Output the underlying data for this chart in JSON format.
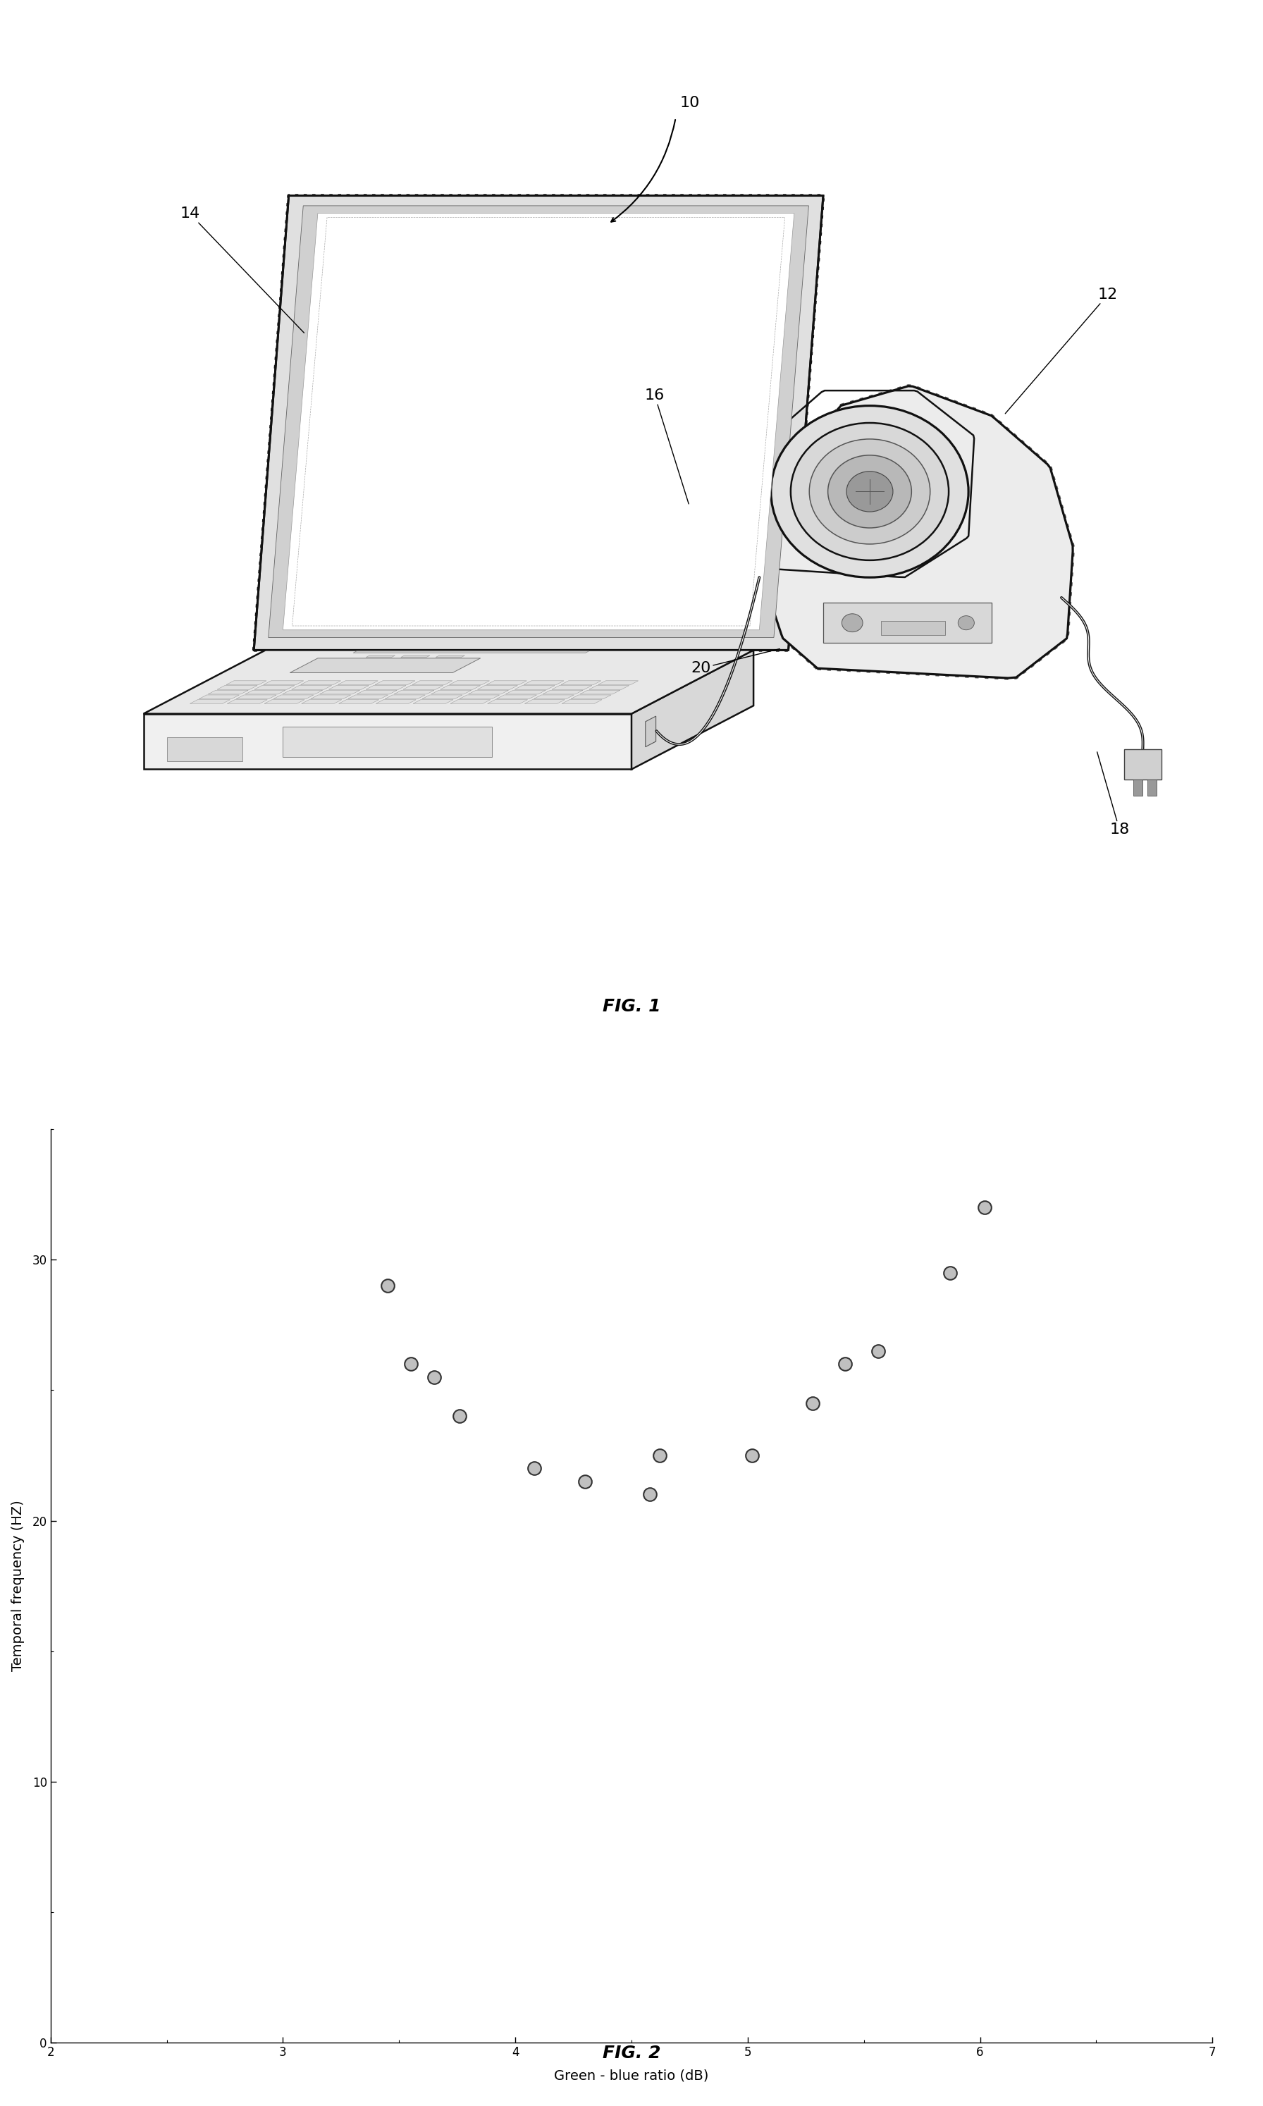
{
  "fig1_caption": "FIG. 1",
  "fig2_caption": "FIG. 2",
  "scatter_x": [
    3.45,
    3.55,
    3.65,
    3.76,
    4.08,
    4.3,
    4.58,
    4.62,
    5.02,
    5.28,
    5.42,
    5.56,
    5.87,
    6.02
  ],
  "scatter_y": [
    29.0,
    26.0,
    25.5,
    24.0,
    22.0,
    21.5,
    21.0,
    22.5,
    22.5,
    24.5,
    26.0,
    26.5,
    29.5,
    32.0
  ],
  "xlabel": "Green - blue ratio (dB)",
  "ylabel": "Temporal frequency (HZ)",
  "xlim": [
    2,
    7
  ],
  "ylim": [
    0,
    35
  ],
  "xticks": [
    2,
    3,
    4,
    5,
    6,
    7
  ],
  "yticks": [
    0,
    10,
    20,
    30
  ],
  "marker_size": 180,
  "marker_facecolor": "#c0c0c0",
  "marker_edgecolor": "#333333",
  "marker_linewidth": 1.5,
  "axis_fontsize": 14,
  "tick_fontsize": 12,
  "caption_fontsize": 18,
  "ref_fontsize": 16,
  "bg_color": "#ffffff",
  "lc": "#111111",
  "lw_main": 1.8,
  "lw_thin": 0.8
}
